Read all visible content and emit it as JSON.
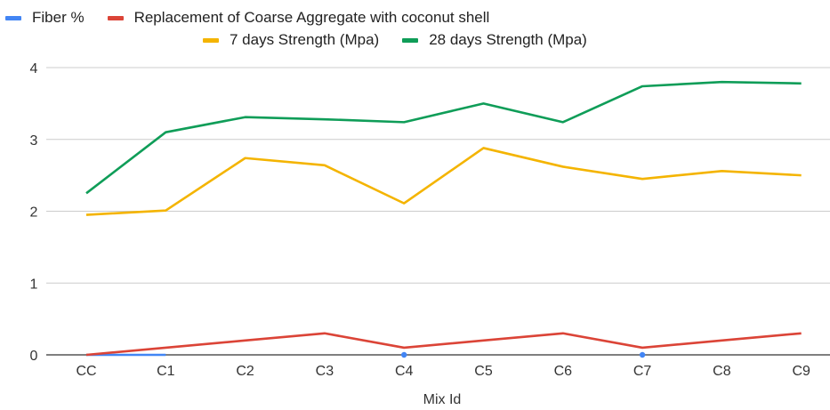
{
  "chart_data": {
    "type": "line",
    "categories": [
      "CC",
      "C1",
      "C2",
      "C3",
      "C4",
      "C5",
      "C6",
      "C7",
      "C8",
      "C9"
    ],
    "series": [
      {
        "name": "Fiber %",
        "color": "#4285f4",
        "values": [
          0,
          0,
          null,
          null,
          0,
          null,
          null,
          0,
          null,
          null
        ]
      },
      {
        "name": "Replacement of Coarse Aggregate with coconut shell",
        "color": "#db4437",
        "values": [
          0,
          0.1,
          0.2,
          0.3,
          0.1,
          0.2,
          0.3,
          0.1,
          0.2,
          0.3
        ]
      },
      {
        "name": "7 days Strength (Mpa)",
        "color": "#f4b400",
        "values": [
          1.95,
          2.01,
          2.74,
          2.64,
          2.11,
          2.88,
          2.62,
          2.45,
          2.56,
          2.5
        ]
      },
      {
        "name": "28 days Strength (Mpa)",
        "color": "#0f9d58",
        "values": [
          2.25,
          3.1,
          3.31,
          3.28,
          3.24,
          3.5,
          3.24,
          3.74,
          3.8,
          3.78
        ]
      }
    ],
    "yticks": [
      0,
      1,
      2,
      3,
      4
    ],
    "ylim": [
      0,
      4
    ],
    "xlabel": "Mix Id",
    "ylabel": "",
    "grid": true,
    "legend_position": "top"
  }
}
